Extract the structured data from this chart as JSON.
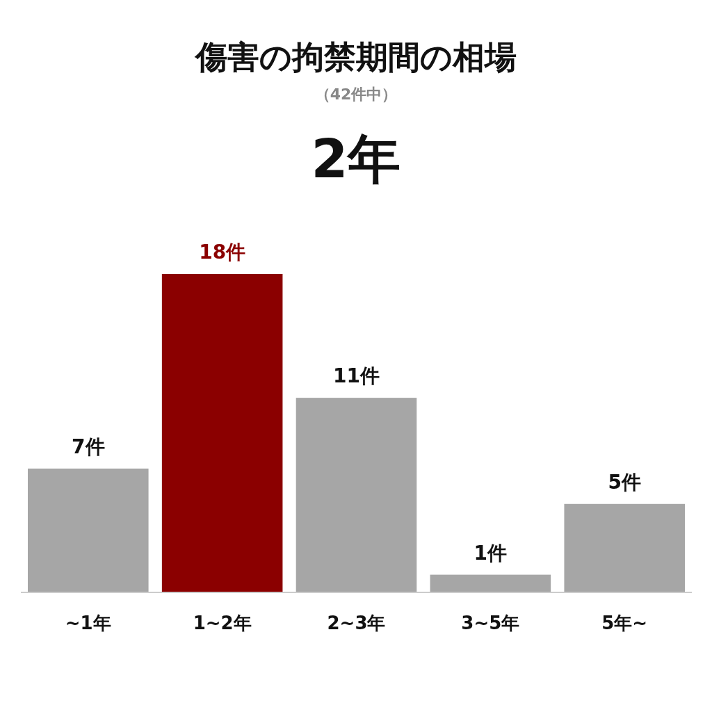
{
  "chart_data": {
    "type": "bar",
    "title": "傷害の拘禁期間の相場",
    "subtitle": "（42件中）",
    "annotations": [
      "2年"
    ],
    "categories": [
      "~1年",
      "1~2年",
      "2~3年",
      "3~5年",
      "5年~"
    ],
    "values": [
      7,
      18,
      11,
      1,
      5
    ],
    "colors": [
      "#a6a6a6",
      "#8b0000",
      "#a6a6a6",
      "#a6a6a6",
      "#a6a6a6"
    ],
    "value_labels": [
      "7件",
      "18件",
      "11件",
      "1件",
      "5件"
    ]
  }
}
